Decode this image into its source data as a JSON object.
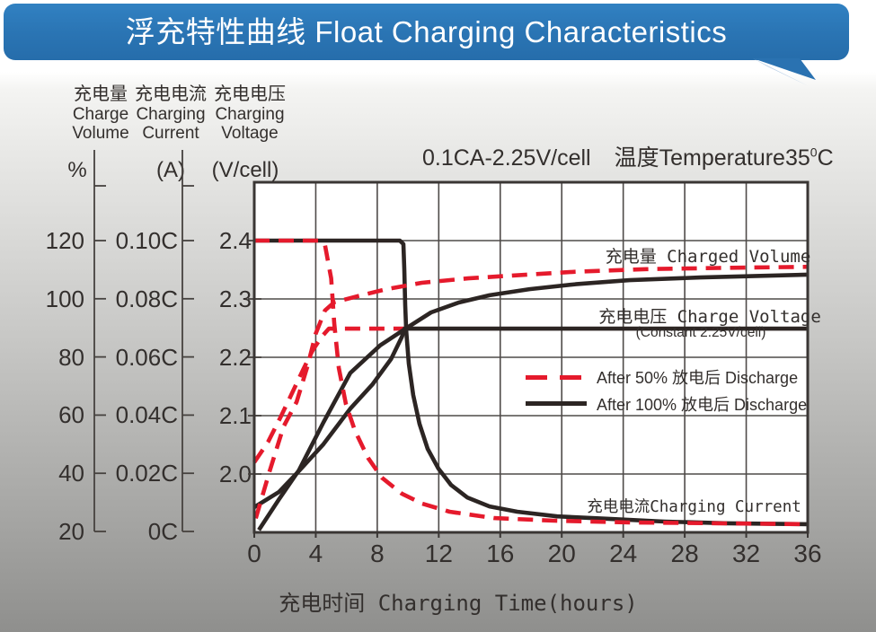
{
  "banner": {
    "title": "浮充特性曲线 Float Charging Characteristics"
  },
  "condition": {
    "part1": "0.1CA-2.25V/cell",
    "part2": "温度Temperature35",
    "sup": "0",
    "part3": "C"
  },
  "axis_headers": [
    {
      "zh": "充电量",
      "en1": "Charge",
      "en2": "Volume",
      "unit": "%"
    },
    {
      "zh": "充电电流",
      "en1": "Charging",
      "en2": "Current",
      "unit": "(A)"
    },
    {
      "zh": "充电电压",
      "en1": "Charging",
      "en2": "Voltage",
      "unit": "(V/cell)"
    }
  ],
  "annotations": {
    "charged_volume": "充电量 Charged Volume",
    "charge_voltage": "充电电压 Charge Voltage",
    "constant": "(Constant 2.25V/cell)",
    "charging_current": "充电电流Charging Current"
  },
  "legend": [
    {
      "label": "After 50% 放电后 Discharge",
      "style": "dashed",
      "color": "#e51a2c"
    },
    {
      "label": "After 100% 放电后 Discharge",
      "style": "solid",
      "color": "#2c2523"
    }
  ],
  "colors": {
    "red": "#e51a2c",
    "black": "#2c2523",
    "banner_blue": "#2a74b3",
    "banner_tail_light": "#b9cfe6"
  },
  "chart_data": {
    "type": "line",
    "title": "0.1CA-2.25V/cell 温度Temperature35°C",
    "x_axis": {
      "label": "充电时间 Charging Time(hours)",
      "range": [
        0,
        36
      ],
      "ticks": [
        0,
        4,
        8,
        12,
        16,
        20,
        24,
        28,
        32,
        36
      ]
    },
    "y_axes": [
      {
        "id": "percent",
        "title": "充电量 Charge Volume",
        "unit": "%",
        "tick_labels": [
          "120",
          "100",
          "80",
          "60",
          "40",
          "20"
        ],
        "tick_values": [
          120,
          100,
          80,
          60,
          40,
          20
        ]
      },
      {
        "id": "current",
        "title": "充电电流 Charging Current",
        "unit": "(A)",
        "tick_labels": [
          "0.10C",
          "0.08C",
          "0.06C",
          "0.04C",
          "0.02C",
          "0C"
        ],
        "tick_values": [
          0.1,
          0.08,
          0.06,
          0.04,
          0.02,
          0
        ]
      },
      {
        "id": "voltage",
        "title": "充电电压 Charging Voltage",
        "unit": "(V/cell)",
        "tick_labels": [
          "2.4",
          "2.3",
          "2.2",
          "2.1",
          "2.0"
        ],
        "tick_values": [
          2.4,
          2.3,
          2.2,
          2.1,
          2.0
        ]
      }
    ],
    "grid": true,
    "legend_position": "inside-right",
    "series": [
      {
        "id": "voltage-after-50",
        "legend": "After 50% 放电后 Discharge",
        "axis": "voltage",
        "color": "red",
        "dash": true,
        "points": [
          [
            0,
            2.02
          ],
          [
            0.9,
            2.055
          ],
          [
            1.7,
            2.097
          ],
          [
            2.45,
            2.138
          ],
          [
            3.16,
            2.178
          ],
          [
            3.8,
            2.212
          ],
          [
            4.38,
            2.235
          ],
          [
            4.85,
            2.249
          ],
          [
            9.8,
            2.249
          ]
        ]
      },
      {
        "id": "voltage-after-100",
        "legend": "After 100% 放电后 Discharge",
        "axis": "voltage",
        "color": "black",
        "dash": false,
        "points": [
          [
            0,
            1.943
          ],
          [
            1.6,
            1.969
          ],
          [
            2.9,
            2.005
          ],
          [
            4.5,
            2.051
          ],
          [
            6.25,
            2.112
          ],
          [
            7.7,
            2.154
          ],
          [
            8.9,
            2.197
          ],
          [
            9.6,
            2.235
          ],
          [
            9.78,
            2.249
          ],
          [
            36,
            2.249
          ]
        ]
      },
      {
        "id": "volume-after-100",
        "legend": "After 100% 放电后 Discharge",
        "axis": "percent",
        "color": "black",
        "dash": false,
        "points": [
          [
            0.3,
            20.5
          ],
          [
            1.6,
            31
          ],
          [
            2.9,
            41
          ],
          [
            4.5,
            57.5
          ],
          [
            6.25,
            74.5
          ],
          [
            8.2,
            84
          ],
          [
            9.78,
            89.5
          ],
          [
            11.5,
            95.3
          ],
          [
            13.3,
            98.7
          ],
          [
            15.3,
            101.2
          ],
          [
            17.9,
            103.3
          ],
          [
            20.9,
            105
          ],
          [
            24.4,
            106.4
          ],
          [
            29,
            107.3
          ],
          [
            36,
            108.3
          ]
        ]
      },
      {
        "id": "current-after-100",
        "legend": "After 100% 放电后 Discharge",
        "axis": "current",
        "color": "black",
        "dash": false,
        "points": [
          [
            0,
            0.1
          ],
          [
            9.47,
            0.1
          ],
          [
            9.7,
            0.0988
          ],
          [
            9.76,
            0.0901
          ],
          [
            9.82,
            0.0778
          ],
          [
            9.88,
            0.0691
          ],
          [
            10.05,
            0.0577
          ],
          [
            10.34,
            0.0469
          ],
          [
            10.75,
            0.037
          ],
          [
            11.28,
            0.0284
          ],
          [
            11.98,
            0.0216
          ],
          [
            12.8,
            0.016
          ],
          [
            13.85,
            0.0117
          ],
          [
            15.3,
            0.0086
          ],
          [
            17.1,
            0.0068
          ],
          [
            19.7,
            0.0052
          ],
          [
            23.2,
            0.0043
          ],
          [
            26.7,
            0.0034
          ],
          [
            30.8,
            0.0028
          ],
          [
            36,
            0.0025
          ]
        ]
      },
      {
        "id": "volume-after-50",
        "legend": "After 50% 放电后 Discharge",
        "axis": "percent",
        "color": "red",
        "dash": true,
        "points": [
          [
            0.1,
            24.5
          ],
          [
            1.0,
            40.7
          ],
          [
            1.9,
            56
          ],
          [
            2.75,
            64.5
          ],
          [
            3.5,
            77.5
          ],
          [
            4.0,
            88
          ],
          [
            4.6,
            96
          ],
          [
            5.2,
            98.8
          ],
          [
            6.8,
            101
          ],
          [
            8.6,
            103.3
          ],
          [
            10.9,
            105.5
          ],
          [
            13.9,
            107
          ],
          [
            16.8,
            108
          ],
          [
            20.9,
            109.3
          ],
          [
            25.5,
            110.2
          ],
          [
            30.2,
            110.6
          ],
          [
            36,
            111
          ]
        ]
      },
      {
        "id": "current-after-50",
        "legend": "After 50% 放电后 Discharge",
        "axis": "current",
        "color": "red",
        "dash": true,
        "points": [
          [
            0,
            0.1
          ],
          [
            4.2,
            0.1
          ],
          [
            4.6,
            0.0985
          ],
          [
            5.0,
            0.087
          ],
          [
            5.2,
            0.0716
          ],
          [
            5.5,
            0.0562
          ],
          [
            5.96,
            0.0438
          ],
          [
            6.55,
            0.0346
          ],
          [
            7.4,
            0.0253
          ],
          [
            8.3,
            0.0185
          ],
          [
            9.6,
            0.013
          ],
          [
            10.9,
            0.0096
          ],
          [
            12.7,
            0.0068
          ],
          [
            15.6,
            0.0046
          ],
          [
            19.5,
            0.0037
          ],
          [
            24.4,
            0.0031
          ],
          [
            30.2,
            0.0028
          ],
          [
            36,
            0.0025
          ]
        ]
      }
    ]
  }
}
